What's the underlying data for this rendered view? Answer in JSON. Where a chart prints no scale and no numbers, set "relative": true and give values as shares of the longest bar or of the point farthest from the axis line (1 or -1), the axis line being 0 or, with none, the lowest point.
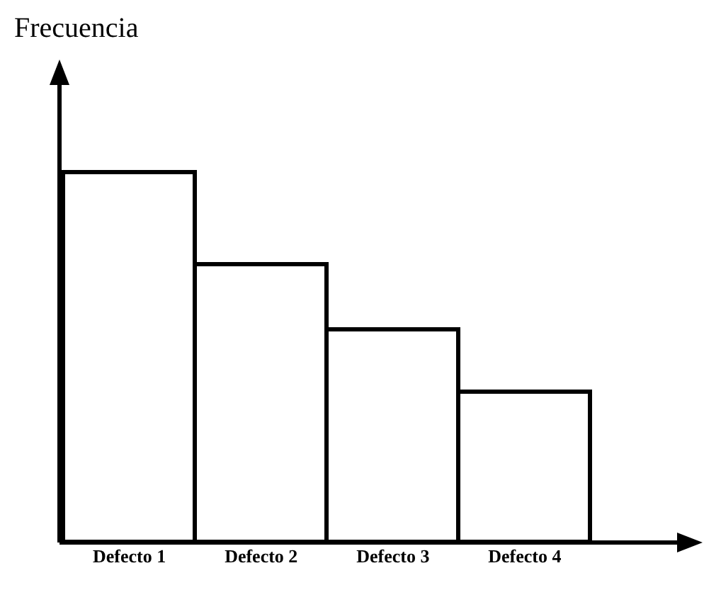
{
  "chart_data": {
    "type": "bar",
    "ylabel": "Frecuencia",
    "categories": [
      "Defecto 1",
      "Defecto 2",
      "Defecto 3",
      "Defecto 4"
    ],
    "relative": true,
    "values": [
      1,
      0.753,
      0.575,
      0.405
    ],
    "color": "#ffffff",
    "grid": false
  }
}
